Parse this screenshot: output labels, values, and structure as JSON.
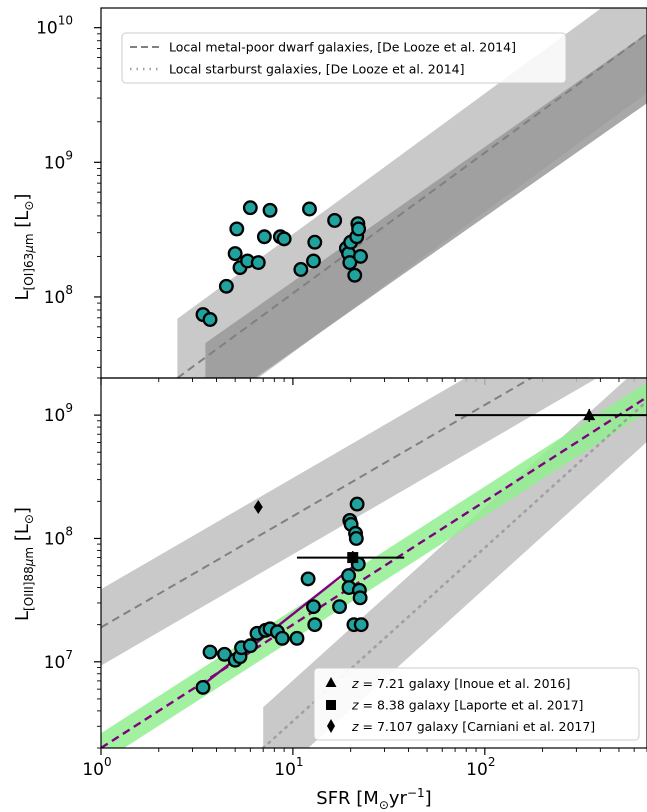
{
  "chart_data": [
    {
      "type": "scatter",
      "panel": "top",
      "ylabel": "L[OI]63μm [L⊙]",
      "ylabel_parts": {
        "main": "L",
        "sub": "[OI]63",
        "mu": "μ",
        "sub2": "m",
        "unit": " [L",
        "sun": "⊙",
        "close": "]"
      },
      "x_scale": "log",
      "y_scale": "log",
      "xlim": [
        1,
        700
      ],
      "ylim": [
        25000000,
        14000000000
      ],
      "ytick_labels": [
        "10^8",
        "10^9",
        "10^10"
      ],
      "ticks": [
        {
          "base": "10",
          "exp": "8",
          "value": 100000000
        },
        {
          "base": "10",
          "exp": "9",
          "value": 1000000000
        },
        {
          "base": "10",
          "exp": "10",
          "value": 10000000000
        }
      ],
      "legend_position": "top-left",
      "legend": [
        {
          "label": "Local metal-poor dwarf galaxies, [De Looze et al. 2014]",
          "style": "dashed",
          "color": "#808080"
        },
        {
          "label": "Local starburst galaxies, [De Looze et al. 2014]",
          "style": "dotted",
          "color": "#a0a0a0"
        }
      ],
      "relations": [
        {
          "style": "dashed",
          "points": [
            [
              2.5,
              25000000
            ],
            [
              700,
              9000000000
            ]
          ],
          "band_dex": 0.44,
          "band_color": "#bfbfbf"
        },
        {
          "style": "dotted",
          "points": [
            [
              3.5,
              25000000
            ],
            [
              700,
              5000000000
            ]
          ],
          "band_dex": 0.26,
          "band_color": "#999999"
        }
      ],
      "points": [
        [
          3.4,
          74000000
        ],
        [
          3.7,
          68000000
        ],
        [
          4.5,
          120000000
        ],
        [
          5.0,
          210000000
        ],
        [
          5.1,
          320000000
        ],
        [
          5.3,
          165000000
        ],
        [
          5.8,
          185000000
        ],
        [
          6.0,
          460000000
        ],
        [
          6.6,
          180000000
        ],
        [
          7.1,
          280000000
        ],
        [
          7.6,
          440000000
        ],
        [
          8.6,
          280000000
        ],
        [
          9.0,
          270000000
        ],
        [
          11.0,
          160000000
        ],
        [
          12.2,
          450000000
        ],
        [
          12.8,
          185000000
        ],
        [
          13.0,
          255000000
        ],
        [
          16.5,
          370000000
        ],
        [
          19.0,
          230000000
        ],
        [
          19.5,
          210000000
        ],
        [
          19.8,
          180000000
        ],
        [
          20.0,
          255000000
        ],
        [
          21.0,
          145000000
        ],
        [
          21.5,
          280000000
        ],
        [
          21.8,
          350000000
        ],
        [
          22.0,
          320000000
        ],
        [
          22.5,
          200000000
        ]
      ],
      "marker_color": "#20a39e"
    },
    {
      "type": "scatter",
      "panel": "bottom",
      "xlabel": "SFR [M⊙yr−1]",
      "xlabel_parts": {
        "main": "SFR [M",
        "sun": "⊙",
        "mid": "yr",
        "sup": "−1",
        "close": "]"
      },
      "ylabel": "L[OIII]88μm [L⊙]",
      "ylabel_parts": {
        "main": "L",
        "sub": "[OIII]88",
        "mu": "μ",
        "sub2": "m",
        "unit": " [L",
        "sun": "⊙",
        "close": "]"
      },
      "x_scale": "log",
      "y_scale": "log",
      "xlim": [
        1,
        700
      ],
      "ylim": [
        2000000,
        2000000000
      ],
      "xtick_labels": [
        "10^0",
        "10^1",
        "10^2"
      ],
      "xticks": [
        {
          "base": "10",
          "exp": "0",
          "value": 1
        },
        {
          "base": "10",
          "exp": "1",
          "value": 10
        },
        {
          "base": "10",
          "exp": "2",
          "value": 100
        }
      ],
      "ytick_labels": [
        "10^7",
        "10^8",
        "10^9"
      ],
      "ticks": [
        {
          "base": "10",
          "exp": "7",
          "value": 10000000
        },
        {
          "base": "10",
          "exp": "8",
          "value": 100000000
        },
        {
          "base": "10",
          "exp": "9",
          "value": 1000000000
        }
      ],
      "legend_position": "bottom-right",
      "legend": [
        {
          "marker": "triangle",
          "z": "z",
          "label": " = 7.21 galaxy [Inoue et al. 2016]"
        },
        {
          "marker": "square",
          "z": "z",
          "label": " = 8.38 galaxy [Laporte et al. 2017]"
        },
        {
          "marker": "diamond",
          "z": "z",
          "label": " = 7.107 galaxy [Carniani et al. 2017]"
        }
      ],
      "relations": [
        {
          "style": "dashed",
          "color": "#808080",
          "points": [
            [
              1,
              19000000
            ],
            [
              700,
              7000000000
            ]
          ],
          "band_dex": 0.31,
          "band_color": "#bfbfbf"
        },
        {
          "style": "dotted",
          "color": "#a0a0a0",
          "points": [
            [
              7,
              2000000
            ],
            [
              700,
              1300000000
            ]
          ],
          "band_dex": 0.33,
          "band_color": "#bfbfbf"
        },
        {
          "style": "dashed",
          "color": "#800080",
          "points": [
            [
              1,
              2000000
            ],
            [
              700,
              1400000000
            ]
          ],
          "band_dex": 0.12,
          "band_color": "#90ee90"
        },
        {
          "style": "solid",
          "color": "#800080",
          "points": [
            [
              3.4,
              6500000
            ],
            [
              22,
              64000000
            ]
          ]
        }
      ],
      "points": [
        [
          3.4,
          6200000
        ],
        [
          3.7,
          12000000
        ],
        [
          4.4,
          11500000
        ],
        [
          5.0,
          10300000
        ],
        [
          5.3,
          11000000
        ],
        [
          5.4,
          13000000
        ],
        [
          6.0,
          13500000
        ],
        [
          6.5,
          17000000
        ],
        [
          7.2,
          18000000
        ],
        [
          7.6,
          18500000
        ],
        [
          8.3,
          17500000
        ],
        [
          8.8,
          15500000
        ],
        [
          10.5,
          15500000
        ],
        [
          12.0,
          47000000
        ],
        [
          12.8,
          28000000
        ],
        [
          13.0,
          20000000
        ],
        [
          17.5,
          28000000
        ],
        [
          19.5,
          50000000
        ],
        [
          19.6,
          40000000
        ],
        [
          19.8,
          140000000
        ],
        [
          20.1,
          130000000
        ],
        [
          20.8,
          20000000
        ],
        [
          21.2,
          110000000
        ],
        [
          21.4,
          100000000
        ],
        [
          21.6,
          190000000
        ],
        [
          21.9,
          62000000
        ],
        [
          22.2,
          38000000
        ],
        [
          22.4,
          33000000
        ],
        [
          22.7,
          20000000
        ]
      ],
      "marker_color": "#20a39e",
      "special": [
        {
          "marker": "triangle",
          "x": 350,
          "y": 1000000000,
          "xerr": [
            70,
            700
          ],
          "yerr": [
            880000000,
            1120000000
          ]
        },
        {
          "marker": "square",
          "x": 20.5,
          "y": 70000000,
          "xerr": [
            10.5,
            38
          ],
          "yerr": [
            61000000,
            79000000
          ]
        },
        {
          "marker": "diamond",
          "x": 6.6,
          "y": 180000000
        }
      ]
    }
  ]
}
